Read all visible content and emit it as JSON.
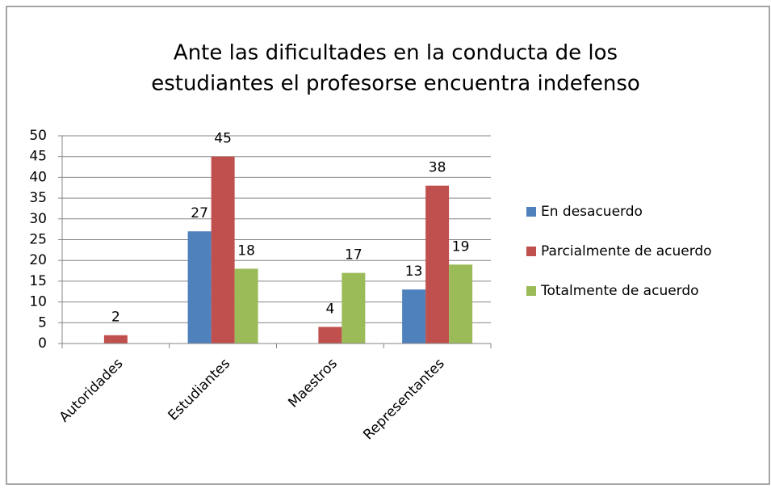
{
  "chart_data": {
    "type": "bar",
    "title": [
      "Ante las dificultades en la conducta de los",
      "estudiantes el profesorse encuentra indefenso"
    ],
    "categories": [
      "Autoridades",
      "Estudiantes",
      "Maestros",
      "Representantes"
    ],
    "series": [
      {
        "name": "En desacuerdo",
        "color": "#4f81bd",
        "values": [
          null,
          27,
          null,
          13
        ]
      },
      {
        "name": "Parcialmente de acuerdo",
        "color": "#c0504d",
        "values": [
          2,
          45,
          4,
          38
        ]
      },
      {
        "name": "Totalmente de acuerdo",
        "color": "#9bbb59",
        "values": [
          null,
          18,
          17,
          19
        ]
      }
    ],
    "ylim": [
      0,
      50
    ],
    "yticks": [
      0,
      5,
      10,
      15,
      20,
      25,
      30,
      35,
      40,
      45,
      50
    ],
    "grid": true,
    "legend": "right"
  }
}
